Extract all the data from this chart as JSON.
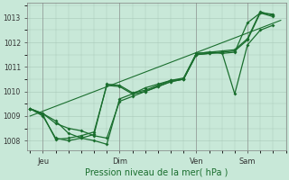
{
  "background_color": "#c8e8d8",
  "grid_color": "#a8c8b8",
  "line_color": "#1a6e2e",
  "xlabel": "Pression niveau de la mer( hPa )",
  "ylim": [
    1007.6,
    1013.6
  ],
  "yticks": [
    1008,
    1009,
    1010,
    1011,
    1012,
    1013
  ],
  "xtick_labels": [
    "Jeu",
    "Dim",
    "Ven",
    "Sam"
  ],
  "xtick_positions": [
    0.5,
    3.5,
    6.5,
    8.5
  ],
  "xlim": [
    -0.1,
    10.0
  ],
  "trend_x": [
    0.0,
    9.8
  ],
  "trend_values": [
    1009.0,
    1012.9
  ],
  "series1_x": [
    0.0,
    0.5,
    1.0,
    1.5,
    2.0,
    2.5,
    3.0,
    3.5,
    4.0,
    4.5,
    5.0,
    5.5,
    6.0,
    6.5,
    7.0,
    7.5,
    8.0,
    8.5,
    9.0,
    9.5
  ],
  "series1_y": [
    1009.3,
    1009.1,
    1008.8,
    1008.3,
    1008.1,
    1008.0,
    1007.85,
    1009.7,
    1009.9,
    1010.15,
    1010.3,
    1010.45,
    1010.5,
    1011.55,
    1011.6,
    1011.55,
    1011.6,
    1012.8,
    1013.2,
    1013.15
  ],
  "series2_x": [
    0.0,
    0.5,
    1.0,
    1.5,
    2.0,
    2.5,
    3.0,
    3.5,
    4.0,
    4.5,
    5.0,
    5.5,
    6.0,
    6.5,
    7.0,
    7.5,
    8.0,
    8.5,
    9.0,
    9.5
  ],
  "series2_y": [
    1009.3,
    1009.1,
    1008.7,
    1008.5,
    1008.4,
    1008.2,
    1008.1,
    1009.6,
    1009.8,
    1010.0,
    1010.2,
    1010.4,
    1010.5,
    1011.5,
    1011.55,
    1011.6,
    1009.9,
    1011.9,
    1012.5,
    1012.7
  ],
  "series3_x": [
    0.0,
    0.5,
    1.0,
    1.5,
    2.0,
    2.5,
    3.0,
    3.5,
    4.0,
    4.5,
    5.0,
    5.5,
    6.0,
    6.5,
    7.0,
    7.5,
    8.0,
    8.5,
    9.0,
    9.5
  ],
  "series3_y": [
    1009.3,
    1009.0,
    1008.1,
    1008.0,
    1008.1,
    1008.25,
    1010.3,
    1010.25,
    1009.95,
    1010.05,
    1010.25,
    1010.45,
    1010.55,
    1011.55,
    1011.6,
    1011.65,
    1011.7,
    1012.15,
    1013.25,
    1013.1
  ],
  "series4_x": [
    0.0,
    0.5,
    1.0,
    1.5,
    2.0,
    2.5,
    3.0,
    3.5,
    4.0,
    4.5,
    5.0,
    5.5,
    6.0,
    6.5,
    7.0,
    7.5,
    8.0,
    8.5,
    9.0,
    9.5
  ],
  "series4_y": [
    1009.3,
    1009.05,
    1008.05,
    1008.1,
    1008.2,
    1008.35,
    1010.25,
    1010.2,
    1009.9,
    1010.0,
    1010.2,
    1010.4,
    1010.5,
    1011.5,
    1011.55,
    1011.6,
    1011.65,
    1012.1,
    1013.2,
    1013.05
  ]
}
